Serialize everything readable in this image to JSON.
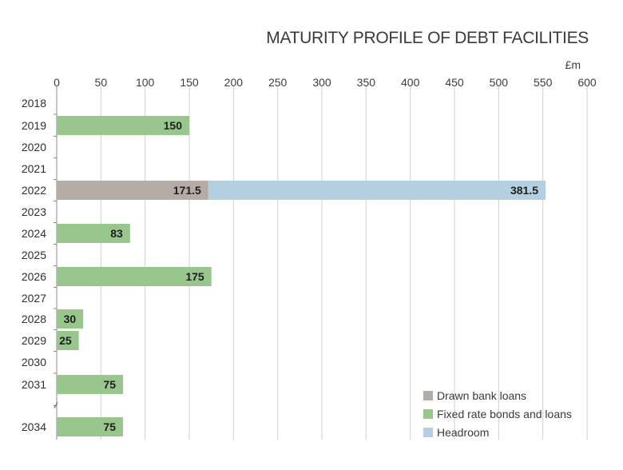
{
  "chart_data": {
    "type": "bar",
    "orientation": "horizontal",
    "stacked": true,
    "title": "MATURITY PROFILE OF DEBT FACILITIES",
    "unit_label": "£m",
    "xlim": [
      0,
      600
    ],
    "x_ticks": [
      0,
      50,
      100,
      150,
      200,
      250,
      300,
      350,
      400,
      450,
      500,
      550,
      600
    ],
    "grid": true,
    "axis_break_after": "2031",
    "categories": [
      "2018",
      "2019",
      "2020",
      "2021",
      "2022",
      "2023",
      "2024",
      "2025",
      "2026",
      "2027",
      "2028",
      "2029",
      "2030",
      "2031",
      "2034"
    ],
    "series": [
      {
        "name": "Drawn bank loans",
        "color": "#b5aca5",
        "values": [
          0,
          0,
          0,
          0,
          171.5,
          0,
          0,
          0,
          0,
          0,
          0,
          0,
          0,
          0,
          0
        ],
        "labels": [
          "",
          "",
          "",
          "",
          "171.5",
          "",
          "",
          "",
          "",
          "",
          "",
          "",
          "",
          "",
          ""
        ]
      },
      {
        "name": "Fixed rate bonds and loans",
        "color": "#98c68d",
        "values": [
          0,
          150,
          0,
          0,
          0,
          0,
          83,
          0,
          175,
          0,
          30,
          25,
          0,
          75,
          75
        ],
        "labels": [
          "",
          "150",
          "",
          "",
          "",
          "",
          "83",
          "",
          "175",
          "",
          "30",
          "25",
          "",
          "75",
          "75"
        ]
      },
      {
        "name": "Headroom",
        "color": "#b4cfe0",
        "values": [
          0,
          0,
          0,
          0,
          381.5,
          0,
          0,
          0,
          0,
          0,
          0,
          0,
          0,
          0,
          0
        ],
        "labels": [
          "",
          "",
          "",
          "",
          "381.5",
          "",
          "",
          "",
          "",
          "",
          "",
          "",
          "",
          "",
          ""
        ]
      }
    ],
    "legend_position": "bottom-right"
  }
}
